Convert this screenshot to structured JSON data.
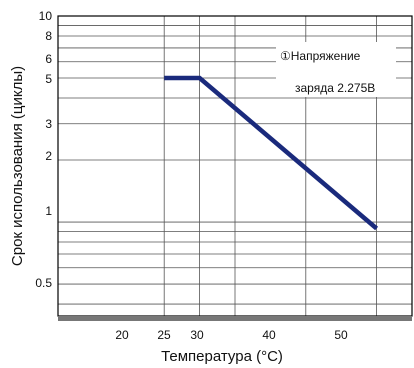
{
  "chart_data": {
    "type": "line",
    "xlabel": "Температура (°C)",
    "ylabel": "Срок использования (циклы)",
    "x_scale": "linear",
    "y_scale": "log",
    "xlim": [
      5,
      55
    ],
    "ylim": [
      0.35,
      10
    ],
    "x_tick_labels": [
      "20",
      "25",
      "30",
      "40",
      "50"
    ],
    "y_tick_labels": [
      "10",
      "8",
      "6",
      "5",
      "3",
      "2",
      "1",
      "0.5"
    ],
    "series": [
      {
        "x": [
          20,
          25,
          50
        ],
        "y": [
          5,
          5,
          0.93
        ]
      }
    ],
    "annotation": {
      "lines": [
        "①Напряжение",
        "заряда 2.275В"
      ]
    },
    "grid": true,
    "line_color": "#1a2a7c"
  }
}
